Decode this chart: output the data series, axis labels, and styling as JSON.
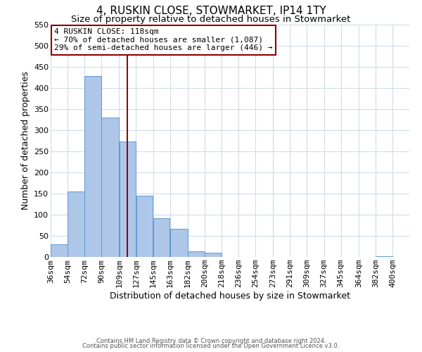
{
  "title": "4, RUSKIN CLOSE, STOWMARKET, IP14 1TY",
  "subtitle": "Size of property relative to detached houses in Stowmarket",
  "xlabel": "Distribution of detached houses by size in Stowmarket",
  "ylabel": "Number of detached properties",
  "bar_left_edges": [
    36,
    54,
    72,
    90,
    109,
    127,
    145,
    163,
    182,
    200,
    218,
    236,
    254,
    273,
    291,
    309,
    327,
    345,
    364,
    382
  ],
  "bar_heights": [
    30,
    155,
    428,
    330,
    273,
    145,
    92,
    67,
    13,
    10,
    0,
    0,
    0,
    0,
    0,
    0,
    0,
    0,
    0,
    2
  ],
  "bar_widths": [
    18,
    18,
    18,
    19,
    18,
    18,
    18,
    19,
    18,
    18,
    18,
    19,
    18,
    18,
    18,
    18,
    18,
    19,
    18,
    18
  ],
  "bar_color": "#aec6e8",
  "bar_edge_color": "#5b9bd5",
  "vertical_line_x": 118,
  "vertical_line_color": "#8b0000",
  "ylim": [
    0,
    550
  ],
  "yticks": [
    0,
    50,
    100,
    150,
    200,
    250,
    300,
    350,
    400,
    450,
    500,
    550
  ],
  "xtick_labels": [
    "36sqm",
    "54sqm",
    "72sqm",
    "90sqm",
    "109sqm",
    "127sqm",
    "145sqm",
    "163sqm",
    "182sqm",
    "200sqm",
    "218sqm",
    "236sqm",
    "254sqm",
    "273sqm",
    "291sqm",
    "309sqm",
    "327sqm",
    "345sqm",
    "364sqm",
    "382sqm",
    "400sqm"
  ],
  "annotation_title": "4 RUSKIN CLOSE: 118sqm",
  "annotation_line1": "← 70% of detached houses are smaller (1,087)",
  "annotation_line2": "29% of semi-detached houses are larger (446) →",
  "annotation_box_color": "#8b0000",
  "footer_line1": "Contains HM Land Registry data © Crown copyright and database right 2024.",
  "footer_line2": "Contains public sector information licensed under the Open Government Licence v3.0.",
  "background_color": "#ffffff",
  "grid_color": "#d0dce8",
  "title_fontsize": 11,
  "subtitle_fontsize": 9.5,
  "xlabel_fontsize": 9,
  "ylabel_fontsize": 9,
  "tick_fontsize": 8,
  "annotation_fontsize": 8,
  "footer_fontsize": 6
}
